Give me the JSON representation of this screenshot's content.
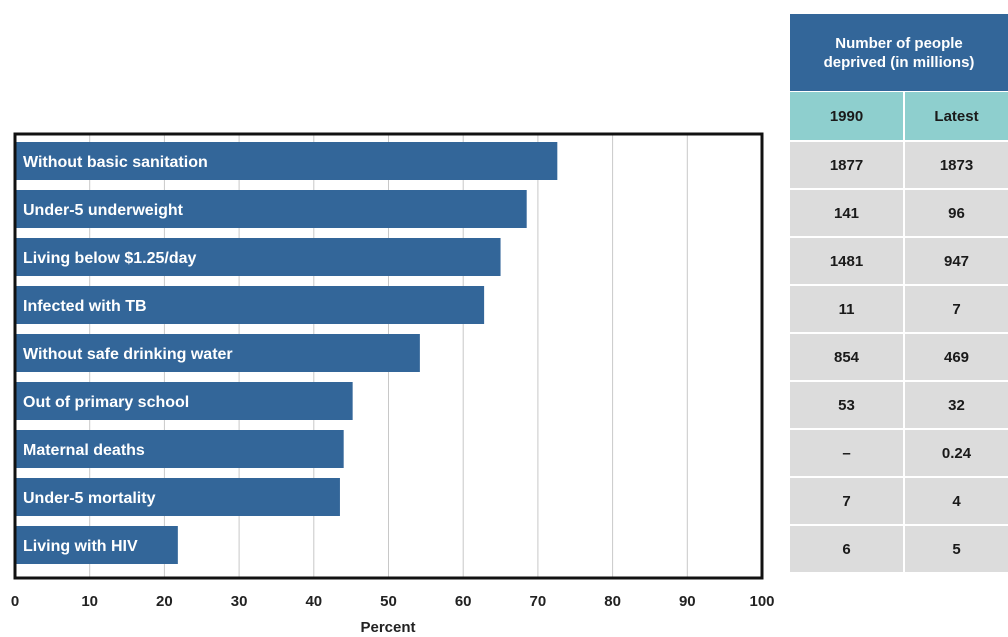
{
  "chart_data": {
    "type": "bar",
    "orientation": "horizontal",
    "categories": [
      "Without basic sanitation",
      "Under-5 underweight",
      "Living below $1.25/day",
      "Infected with TB",
      "Without safe drinking water",
      "Out of primary school",
      "Maternal deaths",
      "Under-5 mortality",
      "Living with HIV"
    ],
    "values": [
      72.6,
      68.5,
      65,
      62.8,
      54.2,
      45.2,
      44,
      43.5,
      21.8
    ],
    "xlabel": "Percent",
    "ylabel": "",
    "xlim": [
      0,
      100
    ],
    "xticks": [
      "0",
      "10",
      "20",
      "30",
      "40",
      "50",
      "60",
      "70",
      "80",
      "90",
      "100"
    ],
    "grid": "vertical",
    "colors": {
      "bar": "#336699",
      "bar_label": "#ffffff",
      "grid": "#c8c8c8",
      "frame": "#111111"
    }
  },
  "table": {
    "header": "Number of people deprived (in millions)",
    "header_line1": "Number of people",
    "header_line2": "deprived (in millions)",
    "col_1990": "1990",
    "col_latest": "Latest",
    "rows": [
      {
        "y1990": "1877",
        "latest": "1873"
      },
      {
        "y1990": "141",
        "latest": "96"
      },
      {
        "y1990": "1481",
        "latest": "947"
      },
      {
        "y1990": "11",
        "latest": "7"
      },
      {
        "y1990": "854",
        "latest": "469"
      },
      {
        "y1990": "53",
        "latest": "32"
      },
      {
        "y1990": "–",
        "latest": "0.24"
      },
      {
        "y1990": "7",
        "latest": "4"
      },
      {
        "y1990": "6",
        "latest": "5"
      }
    ],
    "colors": {
      "header_bg": "#336699",
      "year_row_bg": "#8ecfce",
      "cell_bg": "#dcdcdc"
    }
  }
}
